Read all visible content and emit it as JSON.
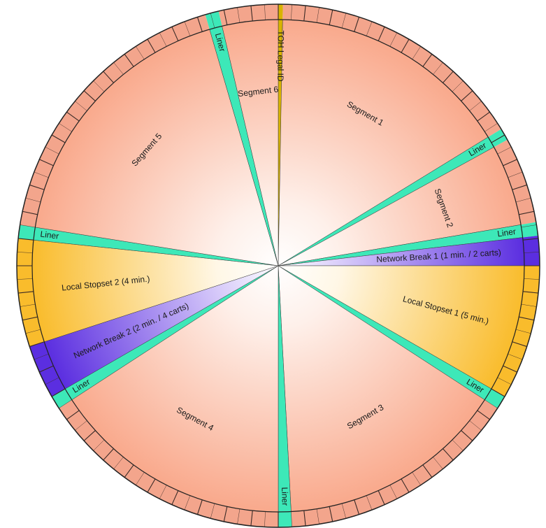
{
  "chart_data": {
    "type": "pie",
    "title": "",
    "unit": "minutes",
    "total_minutes": 60,
    "start_angle_deg": 0,
    "direction": "clockwise",
    "slices": [
      {
        "label": "TOH Legal ID",
        "start": 0.0,
        "end": 0.17,
        "kind": "legal"
      },
      {
        "label": "Segment 1",
        "start": 0.17,
        "end": 9.75,
        "kind": "segment"
      },
      {
        "label": "Liner",
        "start": 9.75,
        "end": 10.2,
        "kind": "liner"
      },
      {
        "label": "Segment 2",
        "start": 10.2,
        "end": 13.4,
        "kind": "segment"
      },
      {
        "label": "Liner",
        "start": 13.4,
        "end": 13.9,
        "kind": "liner"
      },
      {
        "label": "Network Break 1 (1 min. / 2 carts)",
        "start": 13.9,
        "end": 15.0,
        "kind": "network"
      },
      {
        "label": "Local Stopset 1 (5 min.)",
        "start": 15.0,
        "end": 20.0,
        "kind": "stopset"
      },
      {
        "label": "Liner",
        "start": 20.0,
        "end": 20.5,
        "kind": "liner"
      },
      {
        "label": "Segment 3",
        "start": 20.5,
        "end": 29.5,
        "kind": "segment"
      },
      {
        "label": "Liner",
        "start": 29.5,
        "end": 30.0,
        "kind": "liner"
      },
      {
        "label": "Segment 4",
        "start": 30.0,
        "end": 39.5,
        "kind": "segment"
      },
      {
        "label": "Liner",
        "start": 39.5,
        "end": 40.0,
        "kind": "liner"
      },
      {
        "label": "Network Break 2 (2 min. / 4 carts)",
        "start": 40.0,
        "end": 42.0,
        "kind": "network"
      },
      {
        "label": "Local Stopset  2 (4 min.)",
        "start": 42.0,
        "end": 46.0,
        "kind": "stopset"
      },
      {
        "label": "Liner",
        "start": 46.0,
        "end": 46.5,
        "kind": "liner"
      },
      {
        "label": "Segment 5",
        "start": 46.5,
        "end": 57.3,
        "kind": "segment"
      },
      {
        "label": "Liner",
        "start": 57.3,
        "end": 57.8,
        "kind": "liner"
      },
      {
        "label": "Segment 6",
        "start": 57.8,
        "end": 60.0,
        "kind": "segment"
      }
    ],
    "colors": {
      "segment_outer": "#f9a98c",
      "segment_inner": "#fef0ea",
      "liner": "#3de8b8",
      "network": "#5b2ee0",
      "network_inner": "#d9cdfa",
      "stopset": "#f9bc2c",
      "stopset_inner": "#fff7e6",
      "legal": "#d8b400",
      "tick_segment": "#f3a58c",
      "tick_stroke": "#3a2a26",
      "border": "#222222"
    }
  }
}
